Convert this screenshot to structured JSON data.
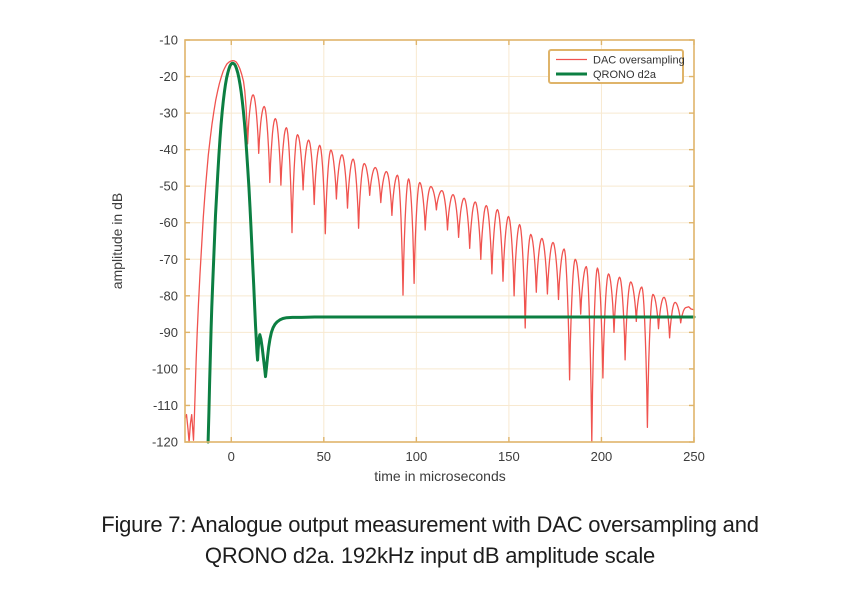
{
  "figure": {
    "caption_line1": "Figure 7: Analogue output measurement with DAC oversampling and",
    "caption_line2": "QRONO d2a. 192kHz input dB amplitude scale"
  },
  "chart_data": {
    "type": "line",
    "title": "",
    "xlabel": "time in microseconds",
    "ylabel": "amplitude in dB",
    "xlim": [
      -25,
      250
    ],
    "ylim": [
      -120,
      -10
    ],
    "xticks": [
      0,
      50,
      100,
      150,
      200,
      250
    ],
    "yticks": [
      -10,
      -20,
      -30,
      -40,
      -50,
      -60,
      -70,
      -80,
      -90,
      -100,
      -110,
      -120
    ],
    "grid": true,
    "legend_position": "top-right",
    "colors": {
      "axis": "#dfb46a",
      "grid": "#f8e9d0",
      "tick_text": "#3d3d3d",
      "legend_text": "#333333",
      "background": "#ffffff"
    },
    "series": [
      {
        "name": "DAC oversampling",
        "color": "#f0534f",
        "width": 1.3,
        "main_points": [
          [
            -25,
            -113.5
          ],
          [
            -24.2,
            -112.5
          ],
          [
            -23.4,
            -116.5
          ],
          [
            -22.8,
            -120.3
          ],
          [
            -22.1,
            -115
          ],
          [
            -21.4,
            -112.5
          ],
          [
            -20.9,
            -116
          ],
          [
            -20.4,
            -119.5
          ],
          [
            -19.9,
            -113
          ],
          [
            -19.5,
            -106
          ],
          [
            -19,
            -98
          ],
          [
            -18.4,
            -90
          ],
          [
            -17.7,
            -82
          ],
          [
            -16.9,
            -74
          ],
          [
            -16,
            -66
          ],
          [
            -15.1,
            -58.5
          ],
          [
            -14.2,
            -52
          ],
          [
            -13.3,
            -46.5
          ],
          [
            -12.4,
            -41.5
          ],
          [
            -11.4,
            -37
          ],
          [
            -10.4,
            -33
          ],
          [
            -9.4,
            -29.5
          ],
          [
            -8.4,
            -26.5
          ],
          [
            -7.4,
            -24
          ],
          [
            -6.4,
            -21.9
          ],
          [
            -5.4,
            -20.1
          ],
          [
            -4.4,
            -18.6
          ],
          [
            -3.4,
            -17.5
          ],
          [
            -2.4,
            -16.6
          ],
          [
            -1.4,
            -16.1
          ],
          [
            -0.4,
            -15.8
          ],
          [
            0.6,
            -15.65
          ],
          [
            1.6,
            -15.7
          ],
          [
            2.6,
            -16
          ],
          [
            3.6,
            -16.7
          ],
          [
            4.6,
            -17.8
          ],
          [
            5.6,
            -19.3
          ],
          [
            6.6,
            -21.3
          ],
          [
            7.3,
            -24
          ],
          [
            8,
            -28.5
          ],
          [
            8.5,
            -33.5
          ],
          [
            8.8,
            -38.4
          ]
        ],
        "ripple_peaks": [
          [
            11.8,
            -25
          ],
          [
            17.8,
            -28.2
          ],
          [
            23.8,
            -31.5
          ],
          [
            29.8,
            -34
          ],
          [
            35.8,
            -35.9
          ],
          [
            41.8,
            -37.4
          ],
          [
            47.8,
            -38.8
          ],
          [
            53.8,
            -40.1
          ],
          [
            59.8,
            -41.4
          ],
          [
            65.8,
            -42.6
          ],
          [
            71.8,
            -43.8
          ],
          [
            77.8,
            -44.9
          ],
          [
            83.8,
            -46
          ],
          [
            89.8,
            -47
          ],
          [
            95.8,
            -48
          ],
          [
            101.8,
            -49
          ],
          [
            107.8,
            -50.1
          ],
          [
            113.8,
            -51.2
          ],
          [
            119.8,
            -52.3
          ],
          [
            125.8,
            -53.3
          ],
          [
            131.8,
            -54.3
          ],
          [
            137.8,
            -55.3
          ],
          [
            143.8,
            -56.4
          ],
          [
            149.8,
            -58.3
          ],
          [
            155.8,
            -60.5
          ],
          [
            161.8,
            -63.2
          ],
          [
            167.8,
            -64.3
          ],
          [
            173.8,
            -65.4
          ],
          [
            179.8,
            -67.2
          ],
          [
            185.8,
            -70
          ],
          [
            191.8,
            -72
          ],
          [
            197.8,
            -72.4
          ],
          [
            203.8,
            -74
          ],
          [
            209.8,
            -74.9
          ],
          [
            215.8,
            -76.2
          ],
          [
            221.8,
            -77.6
          ],
          [
            227.8,
            -79.6
          ],
          [
            233.8,
            -80.4
          ],
          [
            239.8,
            -81.8
          ],
          [
            245.8,
            -83.2
          ]
        ],
        "ripple_dips": [
          [
            14.8,
            -41
          ],
          [
            20.8,
            -49
          ],
          [
            26.8,
            -49.7
          ],
          [
            32.8,
            -62.7
          ],
          [
            38.8,
            -51
          ],
          [
            44.8,
            -55
          ],
          [
            50.8,
            -63
          ],
          [
            56.8,
            -53.5
          ],
          [
            62.8,
            -56
          ],
          [
            68.8,
            -61.5
          ],
          [
            74.8,
            -52.5
          ],
          [
            80.8,
            -54.5
          ],
          [
            86.8,
            -58
          ],
          [
            92.8,
            -79.8
          ],
          [
            98.8,
            -76.6
          ],
          [
            104.8,
            -62
          ],
          [
            110.8,
            -56.5
          ],
          [
            116.8,
            -62
          ],
          [
            122.8,
            -64
          ],
          [
            128.8,
            -67
          ],
          [
            134.8,
            -70
          ],
          [
            140.8,
            -74
          ],
          [
            146.8,
            -76
          ],
          [
            152.8,
            -80
          ],
          [
            158.8,
            -88.8
          ],
          [
            164.8,
            -79
          ],
          [
            170.8,
            -79.5
          ],
          [
            176.8,
            -81
          ],
          [
            182.8,
            -103
          ],
          [
            188.8,
            -85
          ],
          [
            194.8,
            -120.6
          ],
          [
            200.8,
            -102.5
          ],
          [
            206.8,
            -90
          ],
          [
            212.8,
            -97.5
          ],
          [
            218.8,
            -87
          ],
          [
            224.8,
            -116
          ],
          [
            230.8,
            -89
          ],
          [
            236.8,
            -91.5
          ],
          [
            242.8,
            -87.4
          ]
        ],
        "tail_points": [
          [
            247.2,
            -83
          ],
          [
            248.4,
            -83.6
          ],
          [
            250,
            -83.8
          ]
        ]
      },
      {
        "name": "QRONO d2a",
        "color": "#0c7f42",
        "width": 3,
        "points": [
          [
            -12.5,
            -120.5
          ],
          [
            -12.1,
            -112
          ],
          [
            -11.7,
            -104
          ],
          [
            -11.3,
            -96
          ],
          [
            -10.9,
            -89
          ],
          [
            -10.5,
            -83
          ],
          [
            -10,
            -76
          ],
          [
            -9.5,
            -70
          ],
          [
            -9,
            -64
          ],
          [
            -8.5,
            -58
          ],
          [
            -7.9,
            -52
          ],
          [
            -7.3,
            -46.5
          ],
          [
            -6.7,
            -41.5
          ],
          [
            -6.1,
            -37
          ],
          [
            -5.5,
            -33
          ],
          [
            -4.9,
            -29.6
          ],
          [
            -4.3,
            -26.7
          ],
          [
            -3.7,
            -24.2
          ],
          [
            -3.1,
            -22.1
          ],
          [
            -2.5,
            -20.4
          ],
          [
            -1.9,
            -19
          ],
          [
            -1.3,
            -17.9
          ],
          [
            -0.7,
            -17.1
          ],
          [
            -0.1,
            -16.6
          ],
          [
            0.5,
            -16.35
          ],
          [
            1.1,
            -16.4
          ],
          [
            1.7,
            -16.6
          ],
          [
            2.3,
            -17.1
          ],
          [
            2.9,
            -17.9
          ],
          [
            3.5,
            -19
          ],
          [
            4.1,
            -20.4
          ],
          [
            4.7,
            -22.1
          ],
          [
            5.3,
            -24.1
          ],
          [
            5.9,
            -26.5
          ],
          [
            6.5,
            -29.3
          ],
          [
            7.1,
            -32.5
          ],
          [
            7.7,
            -36.2
          ],
          [
            8.3,
            -40.4
          ],
          [
            8.9,
            -45
          ],
          [
            9.5,
            -50.2
          ],
          [
            10.1,
            -55.8
          ],
          [
            10.6,
            -60.8
          ],
          [
            11.1,
            -66
          ],
          [
            11.6,
            -71.4
          ],
          [
            12.1,
            -77
          ],
          [
            12.6,
            -82.6
          ],
          [
            13.1,
            -88
          ],
          [
            13.5,
            -92
          ],
          [
            13.9,
            -95.6
          ],
          [
            14.2,
            -97.6
          ],
          [
            14.5,
            -94.8
          ],
          [
            14.9,
            -92
          ],
          [
            15.4,
            -90.6
          ],
          [
            16,
            -91.8
          ],
          [
            16.7,
            -94.2
          ],
          [
            17.4,
            -97.2
          ],
          [
            18.1,
            -100.3
          ],
          [
            18.5,
            -102.1
          ],
          [
            19,
            -99.8
          ],
          [
            19.6,
            -96.6
          ],
          [
            20.2,
            -94
          ],
          [
            20.9,
            -91.8
          ],
          [
            21.7,
            -90
          ],
          [
            22.6,
            -88.7
          ],
          [
            23.6,
            -87.8
          ],
          [
            24.8,
            -87.1
          ],
          [
            26.2,
            -86.6
          ],
          [
            27.9,
            -86.2
          ],
          [
            29.9,
            -86
          ],
          [
            33,
            -85.9
          ],
          [
            38,
            -85.9
          ],
          [
            45,
            -85.8
          ],
          [
            60,
            -85.8
          ],
          [
            80,
            -85.8
          ],
          [
            110,
            -85.8
          ],
          [
            150,
            -85.8
          ],
          [
            200,
            -85.8
          ],
          [
            250,
            -85.8
          ]
        ]
      }
    ]
  }
}
